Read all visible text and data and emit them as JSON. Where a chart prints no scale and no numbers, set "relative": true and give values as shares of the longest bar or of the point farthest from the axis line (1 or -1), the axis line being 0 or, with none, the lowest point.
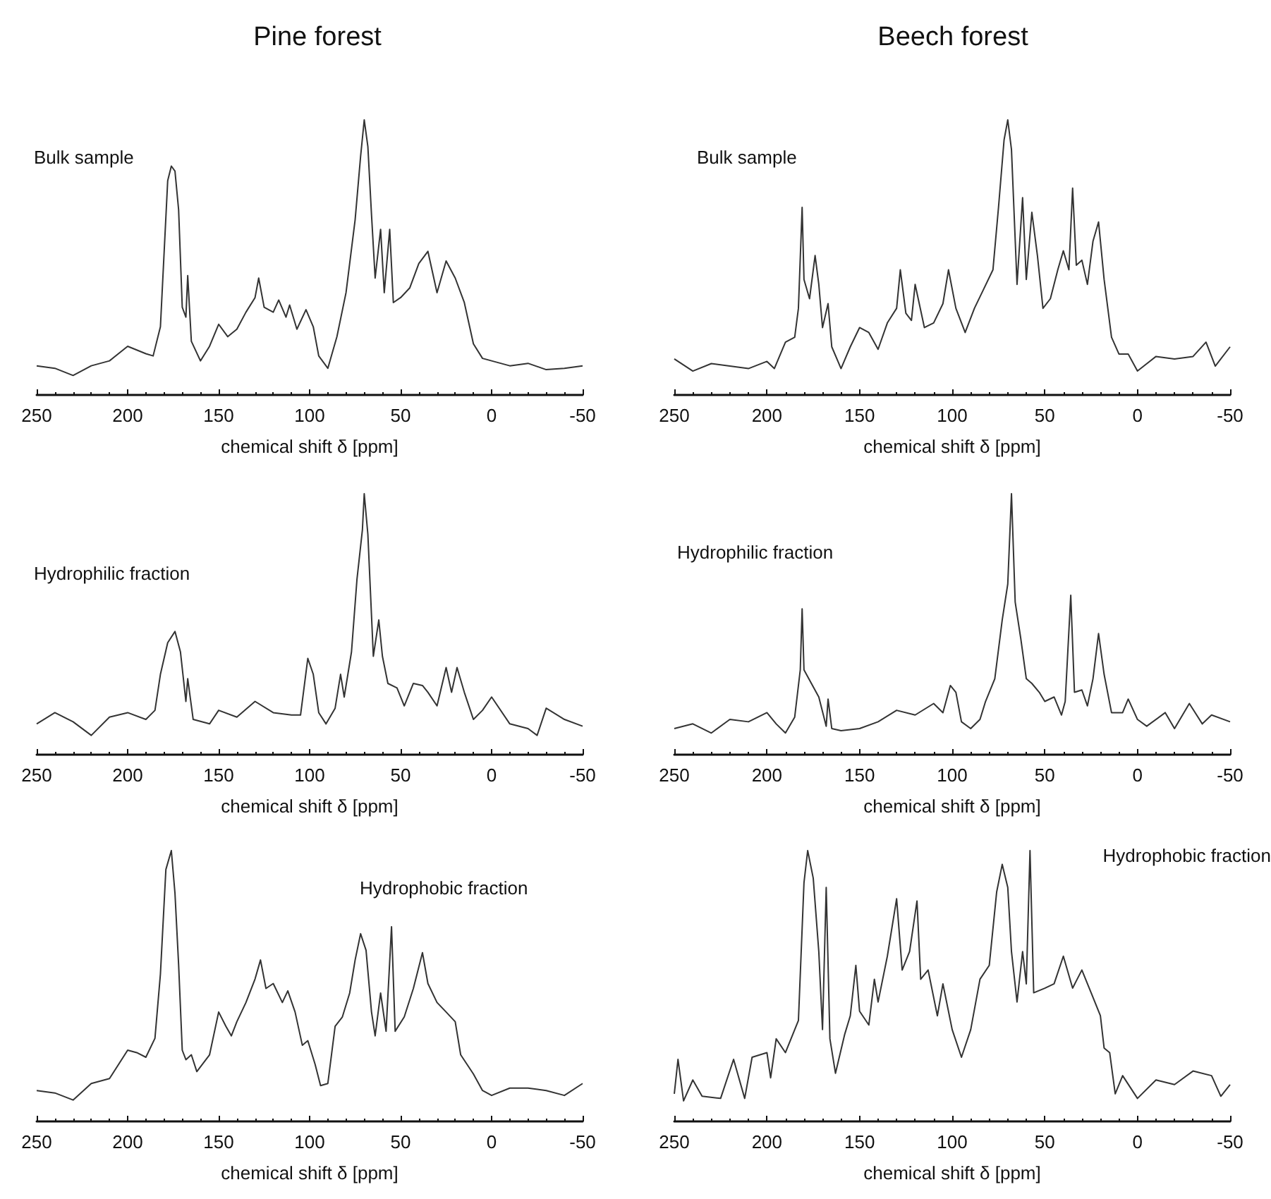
{
  "chart_data": [
    {
      "type": "line",
      "title": "Pine forest",
      "xlabel": "chemical shift δ [ppm]",
      "annotations": [
        "Bulk sample"
      ],
      "relative": true,
      "xlim": [
        250,
        -50
      ],
      "xticks": [
        250,
        200,
        150,
        100,
        50,
        0,
        -50
      ],
      "x": [
        250,
        240,
        230,
        220,
        210,
        200,
        190,
        186,
        182,
        178,
        176,
        174,
        172,
        170,
        168,
        167,
        165,
        160,
        155,
        150,
        145,
        140,
        135,
        130,
        128,
        125,
        120,
        117,
        113,
        111,
        107,
        102,
        98,
        95,
        90,
        85,
        80,
        75,
        72,
        70,
        68,
        66,
        64,
        61,
        59,
        56,
        54,
        50,
        45,
        40,
        35,
        30,
        25,
        20,
        15,
        10,
        5,
        0,
        -10,
        -20,
        -30,
        -40,
        -50
      ],
      "series": [
        {
          "color": "#333333",
          "values": [
            0.106,
            0.097,
            0.071,
            0.106,
            0.124,
            0.177,
            0.15,
            0.142,
            0.248,
            0.779,
            0.832,
            0.814,
            0.673,
            0.319,
            0.283,
            0.434,
            0.195,
            0.124,
            0.177,
            0.257,
            0.212,
            0.239,
            0.301,
            0.354,
            0.425,
            0.319,
            0.301,
            0.345,
            0.283,
            0.327,
            0.239,
            0.31,
            0.248,
            0.142,
            0.097,
            0.212,
            0.372,
            0.637,
            0.867,
            1,
            0.903,
            0.655,
            0.425,
            0.602,
            0.372,
            0.602,
            0.336,
            0.354,
            0.389,
            0.478,
            0.522,
            0.372,
            0.487,
            0.425,
            0.336,
            0.186,
            0.133,
            0.124,
            0.106,
            0.115,
            0.092,
            0.097,
            0.106
          ]
        }
      ]
    },
    {
      "type": "line",
      "title": "Beech forest",
      "xlabel": "chemical shift δ [ppm]",
      "annotations": [
        "Bulk sample"
      ],
      "relative": true,
      "xlim": [
        250,
        -50
      ],
      "xticks": [
        250,
        200,
        150,
        100,
        50,
        0,
        -50
      ],
      "x": [
        250,
        240,
        230,
        220,
        210,
        200,
        196,
        190,
        185,
        183,
        181,
        180,
        177,
        174,
        172,
        170,
        167,
        165,
        160,
        155,
        150,
        145,
        140,
        135,
        130,
        128,
        125,
        122,
        120,
        115,
        110,
        105,
        102,
        98,
        93,
        88,
        83,
        78,
        75,
        72,
        70,
        68,
        65,
        62,
        60,
        57,
        54,
        51,
        47,
        43,
        40,
        37,
        35,
        33,
        30,
        27,
        24,
        21,
        18,
        14,
        10,
        5,
        0,
        -10,
        -20,
        -30,
        -37,
        -42,
        -50
      ],
      "series": [
        {
          "color": "#333333",
          "values": [
            0.131,
            0.087,
            0.114,
            0.105,
            0.096,
            0.122,
            0.096,
            0.192,
            0.21,
            0.315,
            0.682,
            0.42,
            0.35,
            0.507,
            0.402,
            0.245,
            0.332,
            0.175,
            0.096,
            0.175,
            0.245,
            0.227,
            0.166,
            0.262,
            0.315,
            0.455,
            0.297,
            0.271,
            0.402,
            0.245,
            0.262,
            0.332,
            0.455,
            0.315,
            0.227,
            0.315,
            0.385,
            0.455,
            0.682,
            0.927,
            1,
            0.892,
            0.402,
            0.717,
            0.42,
            0.664,
            0.507,
            0.315,
            0.35,
            0.455,
            0.524,
            0.455,
            0.752,
            0.472,
            0.49,
            0.402,
            0.559,
            0.629,
            0.42,
            0.21,
            0.149,
            0.149,
            0.087,
            0.14,
            0.131,
            0.14,
            0.192,
            0.105,
            0.175
          ]
        }
      ]
    },
    {
      "type": "line",
      "xlabel": "chemical shift δ [ppm]",
      "annotations": [
        "Hydrophilic fraction"
      ],
      "relative": true,
      "xlim": [
        250,
        -50
      ],
      "xticks": [
        250,
        200,
        150,
        100,
        50,
        0,
        -50
      ],
      "x": [
        250,
        240,
        230,
        220,
        210,
        200,
        190,
        185,
        182,
        178,
        174,
        171,
        168,
        167,
        164,
        155,
        150,
        140,
        130,
        120,
        110,
        105,
        101,
        98,
        95,
        91,
        86,
        83,
        81,
        77,
        74,
        71,
        70,
        68,
        65,
        62,
        60,
        57,
        52,
        48,
        43,
        38,
        35,
        30,
        25,
        22,
        19,
        15,
        10,
        5,
        0,
        -10,
        -20,
        -25,
        -30,
        -40,
        -50
      ],
      "series": [
        {
          "color": "#333333",
          "values": [
            0.118,
            0.161,
            0.126,
            0.074,
            0.144,
            0.161,
            0.135,
            0.17,
            0.308,
            0.429,
            0.472,
            0.394,
            0.204,
            0.291,
            0.135,
            0.118,
            0.17,
            0.144,
            0.204,
            0.161,
            0.152,
            0.152,
            0.369,
            0.308,
            0.161,
            0.118,
            0.178,
            0.308,
            0.221,
            0.394,
            0.671,
            0.862,
            1,
            0.844,
            0.377,
            0.516,
            0.377,
            0.273,
            0.256,
            0.187,
            0.273,
            0.265,
            0.239,
            0.187,
            0.334,
            0.239,
            0.334,
            0.239,
            0.135,
            0.17,
            0.221,
            0.118,
            0.1,
            0.074,
            0.178,
            0.135,
            0.109
          ]
        }
      ]
    },
    {
      "type": "line",
      "xlabel": "chemical shift δ [ppm]",
      "annotations": [
        "Hydrophilic fraction"
      ],
      "relative": true,
      "xlim": [
        250,
        -50
      ],
      "xticks": [
        250,
        200,
        150,
        100,
        50,
        0,
        -50
      ],
      "x": [
        250,
        240,
        230,
        220,
        210,
        200,
        195,
        190,
        185,
        182,
        181,
        180,
        176,
        172,
        168,
        167,
        165,
        160,
        150,
        140,
        130,
        120,
        110,
        105,
        101,
        98,
        95,
        90,
        85,
        82,
        77,
        73,
        70,
        68,
        66,
        63,
        60,
        57,
        53,
        50,
        45,
        41,
        39,
        36,
        34,
        30,
        27,
        24,
        21,
        18,
        14,
        8,
        5,
        0,
        -5,
        -15,
        -20,
        -28,
        -35,
        -40,
        -50
      ],
      "series": [
        {
          "color": "#333333",
          "values": [
            0.1,
            0.118,
            0.083,
            0.135,
            0.126,
            0.161,
            0.118,
            0.083,
            0.144,
            0.325,
            0.559,
            0.325,
            0.273,
            0.221,
            0.109,
            0.213,
            0.1,
            0.092,
            0.1,
            0.126,
            0.17,
            0.152,
            0.196,
            0.161,
            0.265,
            0.239,
            0.126,
            0.1,
            0.135,
            0.204,
            0.291,
            0.516,
            0.654,
            1,
            0.585,
            0.446,
            0.291,
            0.273,
            0.239,
            0.204,
            0.221,
            0.152,
            0.204,
            0.611,
            0.239,
            0.248,
            0.187,
            0.291,
            0.464,
            0.308,
            0.161,
            0.161,
            0.213,
            0.135,
            0.109,
            0.161,
            0.1,
            0.196,
            0.118,
            0.152,
            0.126
          ]
        }
      ]
    },
    {
      "type": "line",
      "xlabel": "chemical shift δ [ppm]",
      "annotations": [
        "Hydrophobic fraction"
      ],
      "relative": true,
      "xlim": [
        250,
        -50
      ],
      "xticks": [
        250,
        200,
        150,
        100,
        50,
        0,
        -50
      ],
      "x": [
        250,
        240,
        230,
        220,
        210,
        200,
        195,
        190,
        185,
        182,
        179,
        176,
        174,
        172,
        170,
        168,
        165,
        162,
        155,
        150,
        146,
        143,
        140,
        135,
        130,
        127,
        124,
        120,
        115,
        112,
        108,
        104,
        101,
        97,
        94,
        90,
        86,
        82,
        78,
        75,
        72,
        69,
        66,
        64,
        61,
        58,
        55,
        53,
        48,
        43,
        38,
        35,
        30,
        25,
        20,
        17,
        10,
        5,
        0,
        -10,
        -20,
        -30,
        -40,
        -50
      ],
      "series": [
        {
          "color": "#333333",
          "values": [
            0.114,
            0.105,
            0.079,
            0.14,
            0.158,
            0.263,
            0.254,
            0.237,
            0.307,
            0.544,
            0.93,
            1,
            0.842,
            0.579,
            0.263,
            0.228,
            0.246,
            0.184,
            0.246,
            0.404,
            0.351,
            0.316,
            0.368,
            0.439,
            0.526,
            0.596,
            0.491,
            0.509,
            0.439,
            0.482,
            0.404,
            0.281,
            0.298,
            0.211,
            0.132,
            0.14,
            0.351,
            0.386,
            0.474,
            0.596,
            0.693,
            0.632,
            0.404,
            0.316,
            0.474,
            0.333,
            0.719,
            0.333,
            0.386,
            0.491,
            0.623,
            0.509,
            0.439,
            0.404,
            0.368,
            0.246,
            0.175,
            0.114,
            0.096,
            0.123,
            0.123,
            0.114,
            0.096,
            0.14
          ]
        }
      ]
    },
    {
      "type": "line",
      "xlabel": "chemical shift δ [ppm]",
      "annotations": [
        "Hydrophobic fraction"
      ],
      "relative": true,
      "xlim": [
        250,
        -50
      ],
      "xticks": [
        250,
        200,
        150,
        100,
        50,
        0,
        -50
      ],
      "x": [
        250,
        248,
        245,
        240,
        235,
        225,
        218,
        212,
        208,
        200,
        198,
        195,
        190,
        186,
        183,
        180,
        178,
        175,
        172,
        170,
        168,
        166,
        163,
        158,
        155,
        152,
        150,
        145,
        142,
        140,
        135,
        130,
        127,
        123,
        119,
        117,
        113,
        108,
        105,
        100,
        95,
        90,
        85,
        80,
        76,
        73,
        70,
        68,
        65,
        62,
        60,
        58,
        56,
        50,
        45,
        40,
        35,
        30,
        25,
        20,
        18,
        15,
        12,
        8,
        0,
        -10,
        -20,
        -30,
        -40,
        -45,
        -50
      ],
      "series": [
        {
          "color": "#333333",
          "values": [
            0.102,
            0.229,
            0.076,
            0.153,
            0.093,
            0.085,
            0.229,
            0.085,
            0.237,
            0.254,
            0.161,
            0.305,
            0.254,
            0.322,
            0.373,
            0.881,
            1,
            0.898,
            0.627,
            0.339,
            0.864,
            0.305,
            0.178,
            0.322,
            0.39,
            0.576,
            0.407,
            0.356,
            0.525,
            0.441,
            0.61,
            0.822,
            0.559,
            0.627,
            0.814,
            0.525,
            0.559,
            0.39,
            0.508,
            0.339,
            0.237,
            0.339,
            0.525,
            0.576,
            0.847,
            0.949,
            0.864,
            0.627,
            0.441,
            0.627,
            0.508,
            1,
            0.475,
            0.492,
            0.508,
            0.61,
            0.492,
            0.559,
            0.475,
            0.39,
            0.271,
            0.254,
            0.102,
            0.169,
            0.085,
            0.153,
            0.136,
            0.186,
            0.169,
            0.093,
            0.136
          ]
        }
      ]
    }
  ]
}
